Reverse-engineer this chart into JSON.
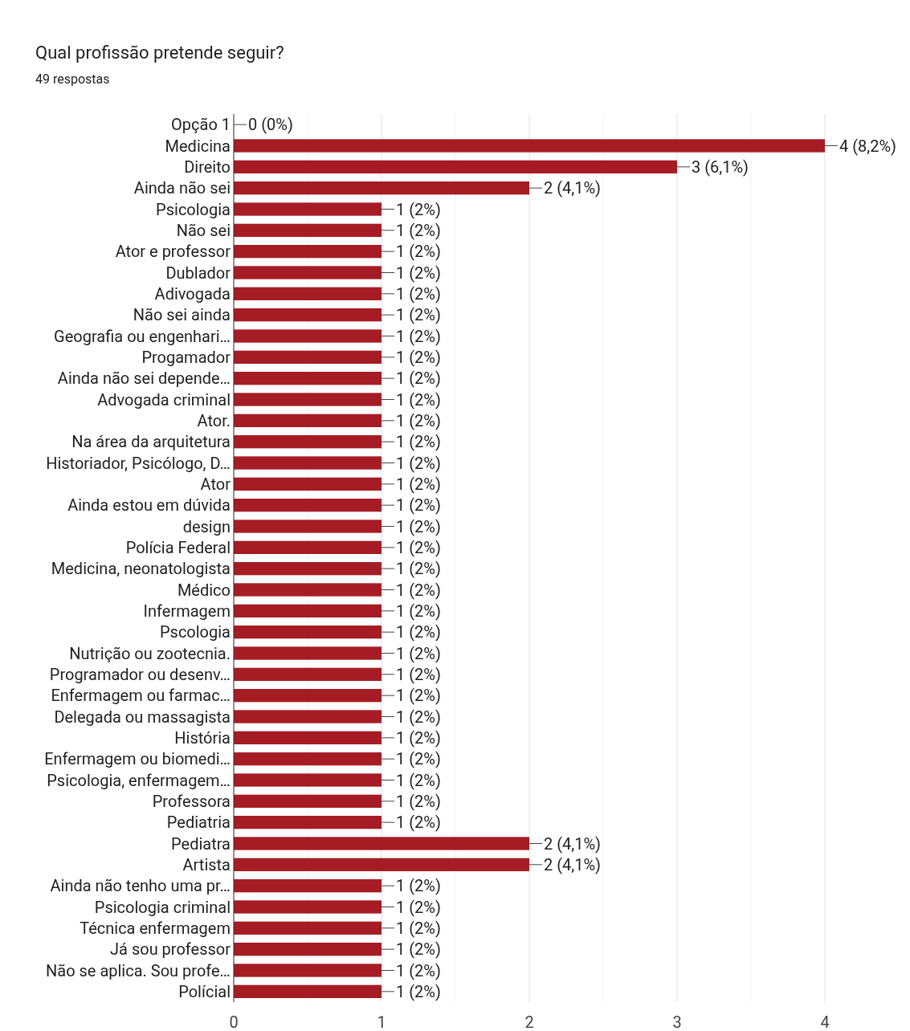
{
  "chart_data": {
    "type": "bar",
    "orientation": "horizontal",
    "title": "Qual profissão pretende seguir?",
    "subtitle": "49 respostas",
    "categories": [
      "Opção 1",
      "Medicina",
      "Direito",
      "Ainda não sei",
      "Psicologia",
      "Não sei",
      "Ator e professor",
      "Dublador",
      "Adivogada",
      "Não sei ainda",
      "Geografia ou engenhari…",
      "Progamador",
      "Ainda não sei depende…",
      "Advogada criminal",
      "Ator.",
      "Na área da arquitetura",
      "Historiador, Psicólogo, D…",
      "Ator",
      "Ainda estou em dúvida",
      "design",
      "Polícia Federal",
      "Medicina, neonatologista",
      "Médico",
      "Infermagem",
      "Pscologia",
      "Nutrição ou zootecnia.",
      "Programador ou desenv…",
      "Enfermagem ou farmac…",
      "Delegada ou massagista",
      "História",
      "Enfermagem ou biomedi…",
      "Psicologia, enfermagem…",
      "Professora",
      "Pediatria",
      "Pediatra",
      "Artista",
      "Ainda não tenho uma pr…",
      "Psicologia criminal",
      "Técnica enfermagem",
      "Já sou professor",
      "Não se aplica. Sou profe…",
      "Polícial"
    ],
    "values": [
      0,
      4,
      3,
      2,
      1,
      1,
      1,
      1,
      1,
      1,
      1,
      1,
      1,
      1,
      1,
      1,
      1,
      1,
      1,
      1,
      1,
      1,
      1,
      1,
      1,
      1,
      1,
      1,
      1,
      1,
      1,
      1,
      1,
      1,
      2,
      2,
      1,
      1,
      1,
      1,
      1,
      1
    ],
    "value_labels": [
      "0 (0%)",
      "4 (8,2%)",
      "3 (6,1%)",
      "2 (4,1%)",
      "1 (2%)",
      "1 (2%)",
      "1 (2%)",
      "1 (2%)",
      "1 (2%)",
      "1 (2%)",
      "1 (2%)",
      "1 (2%)",
      "1 (2%)",
      "1 (2%)",
      "1 (2%)",
      "1 (2%)",
      "1 (2%)",
      "1 (2%)",
      "1 (2%)",
      "1 (2%)",
      "1 (2%)",
      "1 (2%)",
      "1 (2%)",
      "1 (2%)",
      "1 (2%)",
      "1 (2%)",
      "1 (2%)",
      "1 (2%)",
      "1 (2%)",
      "1 (2%)",
      "1 (2%)",
      "1 (2%)",
      "1 (2%)",
      "1 (2%)",
      "2 (4,1%)",
      "2 (4,1%)",
      "1 (2%)",
      "1 (2%)",
      "1 (2%)",
      "1 (2%)",
      "1 (2%)",
      "1 (2%)"
    ],
    "color": "#a61c24",
    "xlim": [
      0,
      4
    ],
    "xticks": [
      0,
      {
        "value": 0.5,
        "label": null
      },
      1,
      {
        "value": 1.5,
        "label": null
      },
      2,
      {
        "value": 2.5,
        "label": null
      },
      3,
      {
        "value": 3.5,
        "label": null
      },
      4
    ],
    "grid": "x"
  }
}
